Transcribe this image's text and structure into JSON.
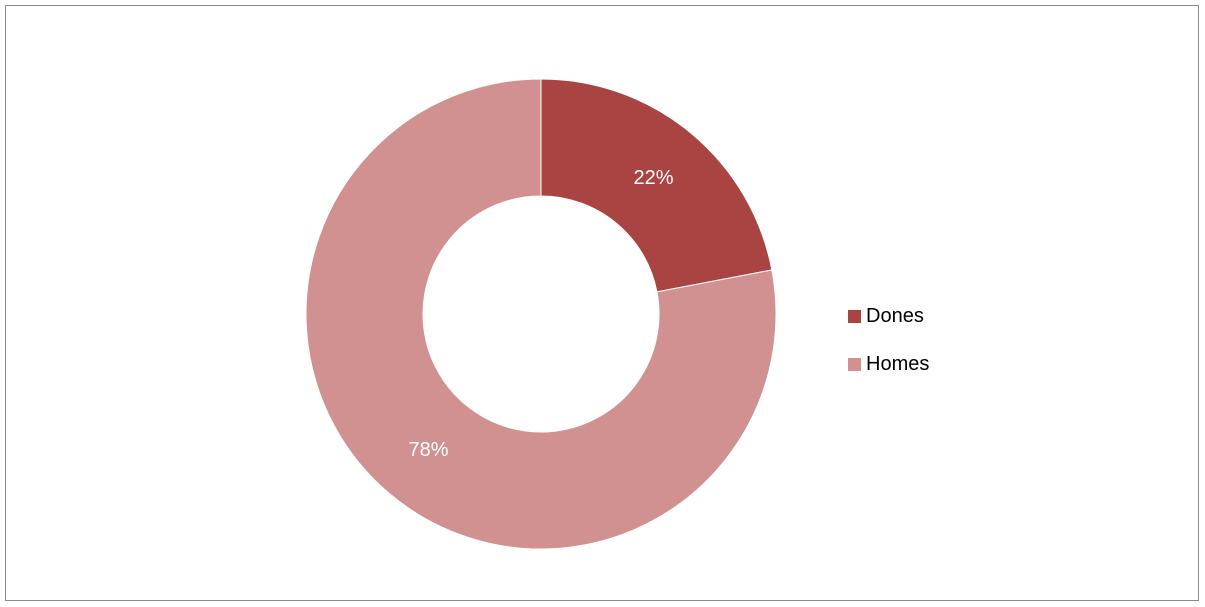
{
  "chart_data": {
    "type": "pie",
    "variant": "donut",
    "categories": [
      "Dones",
      "Homes"
    ],
    "values": [
      22,
      78
    ],
    "value_labels": [
      "22%",
      "78%"
    ],
    "colors": [
      "#a94442",
      "#d19191"
    ],
    "legend_position": "right",
    "title": ""
  },
  "legend": {
    "items": [
      {
        "label": "Dones",
        "color": "#a94442"
      },
      {
        "label": "Homes",
        "color": "#d19191"
      }
    ]
  }
}
